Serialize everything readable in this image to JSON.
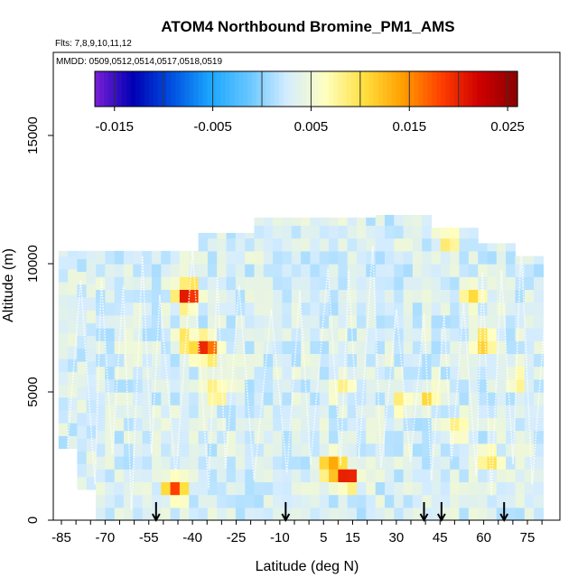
{
  "chart_data": {
    "type": "heatmap",
    "title": "ATOM4 Northbound Bromine_PM1_AMS",
    "subtitle_flights": "Flts: 7,8,9,10,11,12",
    "subtitle_dates": "MMDD: 0509,0512,0514,0517,0518,0519",
    "xlabel": "Latitude (deg N)",
    "ylabel": "Altitude (m)",
    "xlim": [
      -87,
      82
    ],
    "ylim": [
      0,
      18500
    ],
    "x_tick_labels": [
      "-85",
      "-70",
      "-55",
      "-40",
      "-25",
      "-10",
      "5",
      "15",
      "30",
      "45",
      "60",
      "75"
    ],
    "x_tick_values": [
      -85,
      -70,
      -55,
      -40,
      -25,
      -10,
      5,
      15,
      30,
      45,
      60,
      75
    ],
    "y_tick_values": [
      0,
      5000,
      10000,
      15000
    ],
    "y_tick_labels": [
      "0",
      "5000",
      "10000",
      "15000"
    ],
    "colorbar": {
      "min": -0.017,
      "max": 0.026,
      "tick_labels": [
        "-0.015",
        "-0.005",
        "0.005",
        "0.015",
        "0.025"
      ],
      "tick_values": [
        -0.015,
        -0.005,
        0.005,
        0.015,
        0.025
      ],
      "colors": [
        "#7a1fd6",
        "#0000b4",
        "#0050e0",
        "#1aa6ff",
        "#66c6ff",
        "#d4ecff",
        "#ffffc0",
        "#ffe040",
        "#ffa000",
        "#ff4000",
        "#d00000",
        "#8a0000"
      ]
    },
    "background_value": 0.003,
    "hotspots": [
      {
        "lat": -43,
        "alt": 8800,
        "value": 0.024
      },
      {
        "lat": -37,
        "alt": 6700,
        "value": 0.022
      },
      {
        "lat": -34,
        "alt": 5000,
        "value": 0.012
      },
      {
        "lat": -45,
        "alt": 7000,
        "value": 0.01
      },
      {
        "lat": 12,
        "alt": 1700,
        "value": 0.022
      },
      {
        "lat": 6,
        "alt": 2100,
        "value": 0.014
      },
      {
        "lat": -48,
        "alt": 1300,
        "value": 0.02
      },
      {
        "lat": 55,
        "alt": 8800,
        "value": 0.012
      },
      {
        "lat": 46,
        "alt": 10900,
        "value": 0.01
      },
      {
        "lat": 40,
        "alt": 4800,
        "value": 0.011
      },
      {
        "lat": 58,
        "alt": 7000,
        "value": 0.012
      },
      {
        "lat": 30,
        "alt": 4600,
        "value": 0.009
      },
      {
        "lat": 61,
        "alt": 2300,
        "value": 0.011
      },
      {
        "lat": 10,
        "alt": 5200,
        "value": 0.009
      },
      {
        "lat": 70,
        "alt": 5600,
        "value": 0.009
      },
      {
        "lat": 49,
        "alt": 3600,
        "value": 0.009
      }
    ],
    "flight_date_markers_lat": [
      -52.5,
      -8,
      39.5,
      45.5,
      67
    ]
  }
}
